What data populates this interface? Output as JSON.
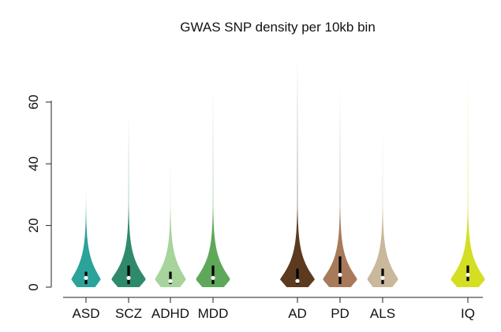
{
  "chart_data": {
    "type": "violin",
    "title": "GWAS SNP density per 10kb bin",
    "xlabel": "",
    "ylabel": "",
    "ylim": [
      0,
      80
    ],
    "yticks": [
      0,
      20,
      40,
      60
    ],
    "grid": false,
    "legend": "none",
    "categories": [
      "ASD",
      "SCZ",
      "ADHD",
      "MDD",
      "AD",
      "PD",
      "ALS",
      "IQ"
    ],
    "groups": [
      [
        "ASD",
        "SCZ",
        "ADHD",
        "MDD"
      ],
      [
        "AD",
        "PD",
        "ALS"
      ],
      [
        "IQ"
      ]
    ],
    "series": [
      {
        "category": "ASD",
        "color": "#2ba39a",
        "max": 33,
        "median": 3,
        "q1": 1,
        "q3": 5,
        "density_scale": 0.85
      },
      {
        "category": "SCZ",
        "color": "#2f8a6b",
        "max": 56,
        "median": 3,
        "q1": 1,
        "q3": 7,
        "density_scale": 1.0
      },
      {
        "category": "ADHD",
        "color": "#a6d49b",
        "max": 45,
        "median": 2,
        "q1": 1,
        "q3": 5,
        "density_scale": 0.9
      },
      {
        "category": "MDD",
        "color": "#5fa85a",
        "max": 65,
        "median": 3,
        "q1": 1,
        "q3": 7,
        "density_scale": 1.0
      },
      {
        "category": "AD",
        "color": "#5c3a1f",
        "max": 75,
        "median": 2,
        "q1": 1,
        "q3": 6,
        "density_scale": 1.0
      },
      {
        "category": "PD",
        "color": "#a87a5a",
        "max": 65,
        "median": 4,
        "q1": 1,
        "q3": 10,
        "density_scale": 1.0
      },
      {
        "category": "ALS",
        "color": "#c9b89b",
        "max": 53,
        "median": 3,
        "q1": 1,
        "q3": 6,
        "density_scale": 0.9
      },
      {
        "category": "IQ",
        "color": "#d4de23",
        "max": 71,
        "median": 4,
        "q1": 2,
        "q3": 7,
        "density_scale": 1.0
      }
    ]
  }
}
